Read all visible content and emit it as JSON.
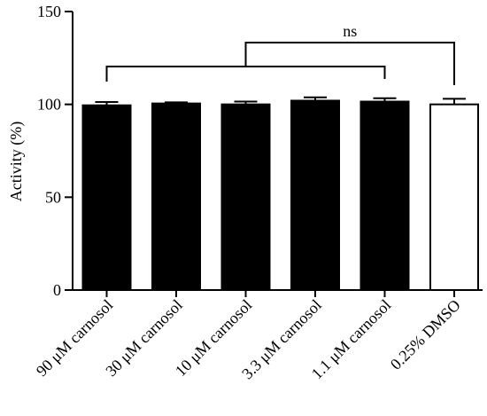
{
  "chart_data": {
    "type": "bar",
    "categories": [
      "90 μM carnosol",
      "30 μM carnosol",
      "10 μM carnosol",
      "3.3  μM carnosol",
      "1.1  μM carnosol",
      "0.25% DMSO"
    ],
    "values": [
      99.5,
      100.5,
      100,
      102,
      101.5,
      100
    ],
    "errors": [
      1.8,
      0.6,
      1.5,
      1.8,
      1.8,
      3.0
    ],
    "fill_colors": [
      "#000000",
      "#000000",
      "#000000",
      "#000000",
      "#000000",
      "#ffffff"
    ],
    "ylabel": "Activity (%)",
    "xlabel": "",
    "ylim": [
      0,
      150
    ],
    "yticks": [
      0,
      50,
      100,
      150
    ],
    "grid": false,
    "annotations": [
      {
        "text": "ns",
        "type": "significance-bracket",
        "from_group": "90 μM carnosol to 1.1  μM carnosol",
        "to_group": "0.25% DMSO"
      }
    ]
  }
}
